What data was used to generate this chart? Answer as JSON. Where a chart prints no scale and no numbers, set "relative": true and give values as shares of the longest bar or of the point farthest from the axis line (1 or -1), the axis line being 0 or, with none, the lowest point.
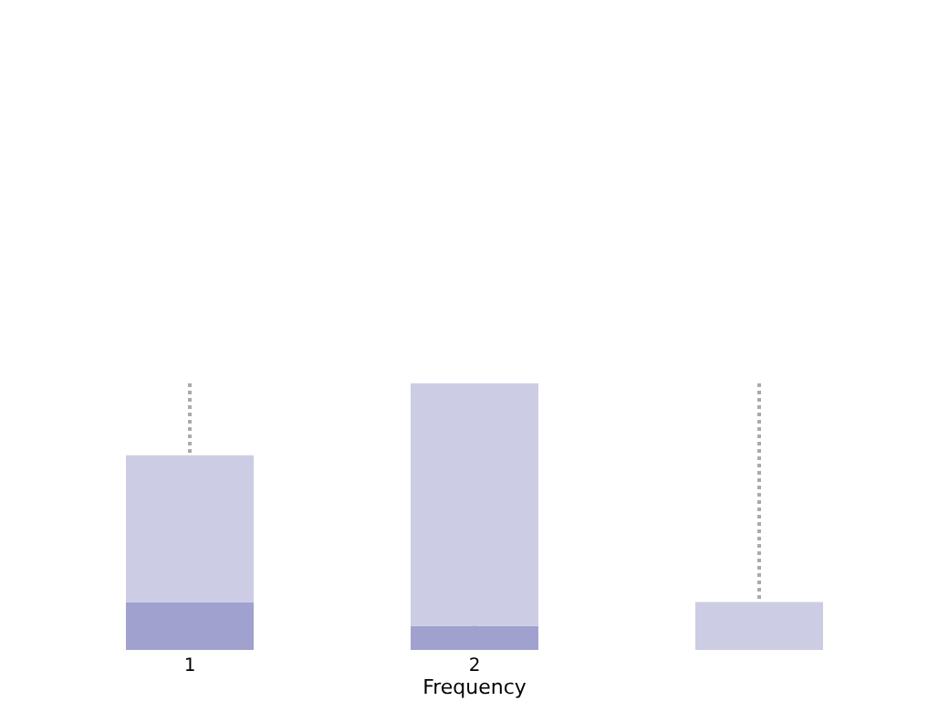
{
  "chart_data": {
    "type": "bar",
    "xlabel": "Frequency",
    "categories": [
      "1",
      "2",
      null
    ],
    "relative": true,
    "stacked": true,
    "grid": "x",
    "series": [
      {
        "color": "#a1a1d0",
        "values": [
          0.18,
          0.09,
          0
        ]
      },
      {
        "color": "#cccce4",
        "values": [
          0.55,
          0.91,
          0.18
        ]
      }
    ]
  }
}
